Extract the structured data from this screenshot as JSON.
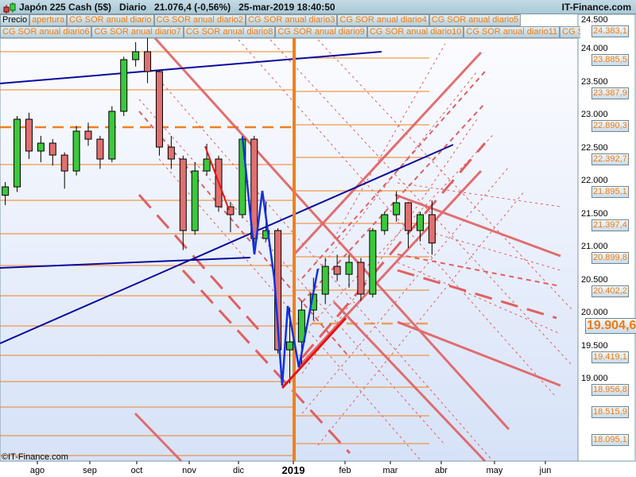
{
  "header": {
    "title": "Japón 225 Cash (5$)   Diario   21.076,4 (-0,56%)   25-mar-2019 18:40:50",
    "brand": "IT-Finance.com"
  },
  "legend": {
    "row1": [
      "Precio",
      "apertura",
      "CG SOR anual diario",
      "CG SOR anual diario2",
      "CG SOR anual diario3",
      "CG SOR anual diario4",
      "CG SOR anual diario5"
    ],
    "row2": [
      "CG SOR anual diario6",
      "CG SOR anual diario7",
      "CG SOR anual diario8",
      "CG SOR anual diario9",
      "CG SOR anual diario10",
      "CG SOR anual diario11",
      "CG SOR anual"
    ]
  },
  "copyright": "©IT-Finance.com",
  "colors": {
    "up": "#3cc83c",
    "down": "#e07070",
    "levels": "#f08020",
    "trend_blue": "#0a0aa0",
    "channel": "#e06060",
    "zigzag": "#1030e0"
  },
  "chart_data": {
    "type": "candlestick",
    "ylim": [
      18000,
      24500
    ],
    "y_ticks": [
      "24.500",
      "24.000",
      "23.500",
      "23.000",
      "22.500",
      "22.000",
      "21.500",
      "21.000",
      "20.500",
      "20.000",
      "19.500",
      "19.000"
    ],
    "x_ticks": [
      "ago",
      "sep",
      "oct",
      "nov",
      "dic",
      "2019",
      "feb",
      "mar",
      "abr",
      "may",
      "jun"
    ],
    "price_levels": [
      "24.383,1",
      "23.885,5",
      "23.387,9",
      "22.890,3",
      "22.392,7",
      "21.895,1",
      "21.397,4",
      "20.899,8",
      "20.402,2",
      "19.904,6",
      "19.419,1",
      "18.956,8",
      "18.515,9",
      "18.095,1"
    ],
    "highlight_level": "19.904,6",
    "ohlc": [
      [
        "2018-07-13",
        21800,
        22000,
        21650,
        21927
      ],
      [
        "2018-07-20",
        21927,
        23000,
        21850,
        22952
      ],
      [
        "2018-07-27",
        22952,
        23050,
        22350,
        22470
      ],
      [
        "2018-08-03",
        22470,
        22700,
        22300,
        22590
      ],
      [
        "2018-08-10",
        22590,
        22650,
        22250,
        22409
      ],
      [
        "2018-08-17",
        22409,
        22450,
        21900,
        22168
      ],
      [
        "2018-08-24",
        22168,
        22850,
        22100,
        22771
      ],
      [
        "2018-08-31",
        22771,
        22900,
        22550,
        22650
      ],
      [
        "2018-09-07",
        22650,
        22700,
        22200,
        22349
      ],
      [
        "2018-09-14",
        22349,
        23150,
        22300,
        23072
      ],
      [
        "2018-09-21",
        23072,
        23900,
        23000,
        23855
      ],
      [
        "2018-09-28",
        23855,
        24120,
        23750,
        23976
      ],
      [
        "2018-10-05",
        23976,
        24448,
        23500,
        23675
      ],
      [
        "2018-10-12",
        23675,
        23700,
        22400,
        22530
      ],
      [
        "2018-10-19",
        22530,
        22700,
        22200,
        22349
      ],
      [
        "2018-10-26",
        22349,
        22400,
        20970,
        21265
      ],
      [
        "2018-11-02",
        21265,
        22300,
        21200,
        22168
      ],
      [
        "2018-11-09",
        22168,
        22580,
        22100,
        22349
      ],
      [
        "2018-11-16",
        22349,
        22400,
        21550,
        21626
      ],
      [
        "2018-11-23",
        21626,
        21700,
        21240,
        21506
      ],
      [
        "2018-11-30",
        21506,
        22700,
        21450,
        22650
      ],
      [
        "2018-12-07",
        22650,
        22700,
        21050,
        21144
      ],
      [
        "2018-12-14",
        21144,
        21700,
        21100,
        21265
      ],
      [
        "2018-12-21",
        21265,
        21300,
        19400,
        19457
      ],
      [
        "2018-12-28",
        19457,
        20100,
        18948,
        19578
      ],
      [
        "2019-01-04",
        19578,
        20200,
        19240,
        20060
      ],
      [
        "2019-01-11",
        20060,
        20550,
        19900,
        20301
      ],
      [
        "2019-01-18",
        20301,
        20850,
        20150,
        20722
      ],
      [
        "2019-01-25",
        20722,
        20900,
        20500,
        20602
      ],
      [
        "2019-02-01",
        20602,
        20900,
        20400,
        20783
      ],
      [
        "2019-02-08",
        20783,
        20850,
        20200,
        20301
      ],
      [
        "2019-02-15",
        20301,
        21300,
        20250,
        21265
      ],
      [
        "2019-02-22",
        21265,
        21550,
        21200,
        21506
      ],
      [
        "2019-03-01",
        21506,
        21860,
        21400,
        21686
      ],
      [
        "2019-03-08",
        21686,
        21700,
        21000,
        21265
      ],
      [
        "2019-03-15",
        21265,
        21550,
        21100,
        21506
      ],
      [
        "2019-03-22",
        21506,
        21720,
        20900,
        21076
      ]
    ],
    "grid": false
  }
}
